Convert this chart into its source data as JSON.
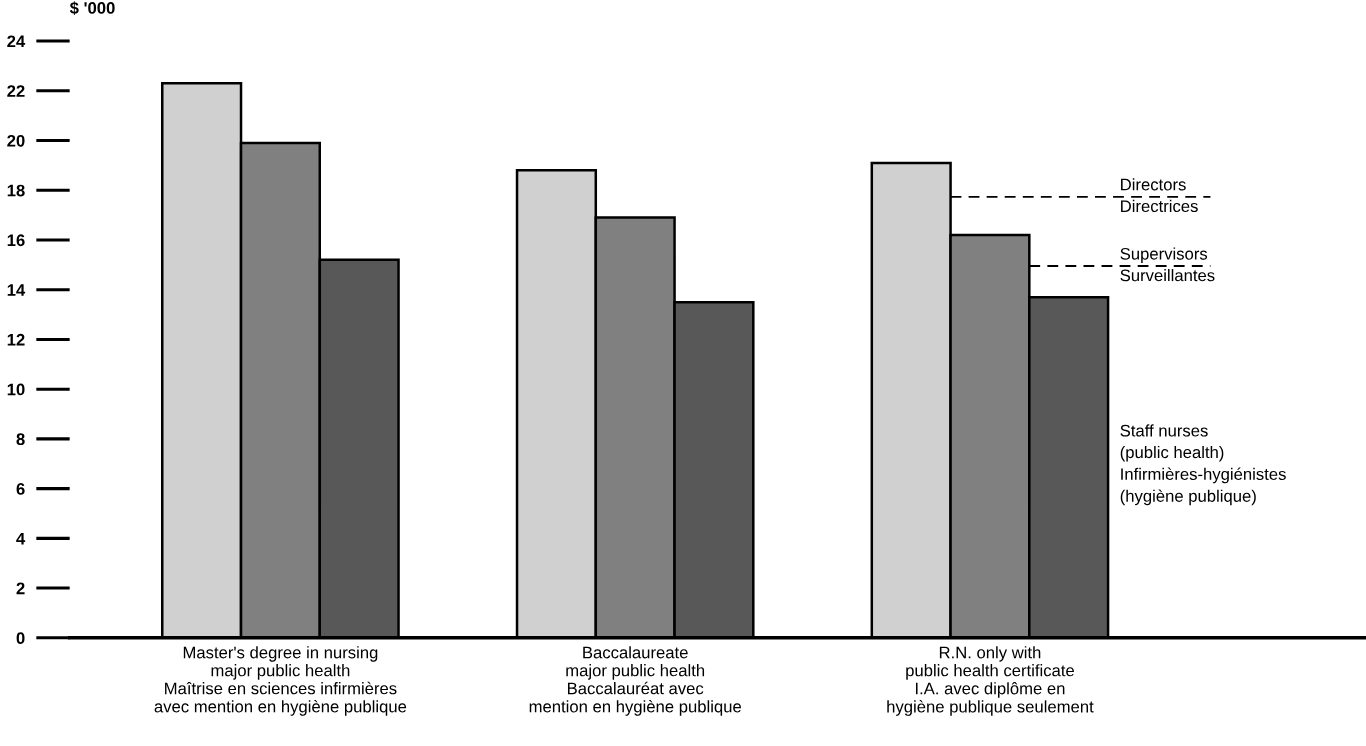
{
  "chart_data": {
    "type": "bar",
    "ylabel": "$ '000",
    "categories": [
      "Master's degree in nursing\nmajor public health\nMaîtrise en sciences infirmières\navec mention en hygiène publique",
      "Baccalaureate\nmajor public health\nBaccalauréat avec\nmention en hygiène publique",
      "R.N. only with\npublic health certificate\nI.A. avec diplôme en\nhygiène publique seulement"
    ],
    "series": [
      {
        "name": "Directors\nDirectrices",
        "color": "#d0d0d0",
        "values": [
          22.3,
          18.8,
          19.1
        ]
      },
      {
        "name": "Supervisors\nSurveillantes",
        "color": "#808080",
        "values": [
          19.9,
          16.9,
          16.2
        ]
      },
      {
        "name": "Staff nurses\n(public health)\nInfirmières-hygiénistes\n(hygiène publique)",
        "color": "#585858",
        "values": [
          15.2,
          13.5,
          13.7
        ]
      }
    ],
    "ylim": [
      0,
      24
    ],
    "yticks": [
      0,
      2,
      4,
      6,
      8,
      10,
      12,
      14,
      16,
      18,
      20,
      22,
      24
    ],
    "grid": false,
    "legend": false
  }
}
